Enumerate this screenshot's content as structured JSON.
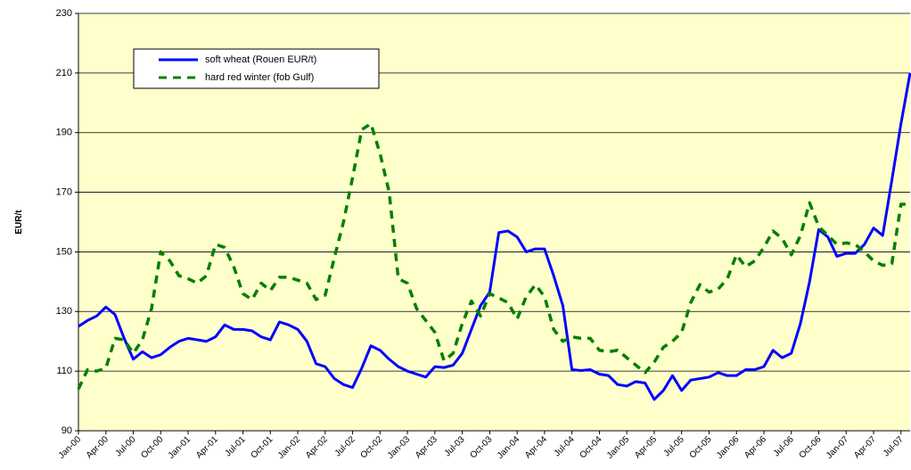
{
  "chart_data": {
    "type": "line",
    "y_label": "EUR/t",
    "categories": [
      "Jan-00",
      null,
      null,
      "Apr-00",
      null,
      null,
      "Jul-00",
      null,
      null,
      "Oct-00",
      null,
      null,
      "Jan-01",
      null,
      null,
      "Apr-01",
      null,
      null,
      "Jul-01",
      null,
      null,
      "Oct-01",
      null,
      null,
      "Jan-02",
      null,
      null,
      "Apr-02",
      null,
      null,
      "Jul-02",
      null,
      null,
      "Oct-02",
      null,
      null,
      "Jan-03",
      null,
      null,
      "Apr-03",
      null,
      null,
      "Jul-03",
      null,
      null,
      "Oct-03",
      null,
      null,
      "Jan-04",
      null,
      null,
      "Apr-04",
      null,
      null,
      "Jul-04",
      null,
      null,
      "Oct-04",
      null,
      null,
      "Jan-05",
      null,
      null,
      "Apr-05",
      null,
      null,
      "Jul-05",
      null,
      null,
      "Oct-05",
      null,
      null,
      "Jan-06",
      null,
      null,
      "Apr-06",
      null,
      null,
      "Jul-06",
      null,
      null,
      "Oct-06",
      null,
      null,
      "Jan-07",
      null,
      null,
      "Apr-07",
      null,
      null,
      "Jul-07",
      null
    ],
    "series": [
      {
        "name": "soft wheat (Rouen EUR/t)",
        "color": "#0000ff",
        "dashed": false,
        "values": [
          125,
          127,
          128.5,
          131.5,
          129,
          121,
          114,
          116.5,
          114.5,
          115.5,
          118,
          120,
          121,
          120.5,
          120,
          121.5,
          125.5,
          124,
          124,
          123.5,
          121.5,
          120.5,
          126.5,
          125.5,
          124,
          120,
          112.5,
          111.5,
          107.5,
          105.5,
          104.5,
          111,
          118.5,
          117,
          114,
          111.5,
          110,
          109,
          108,
          111.5,
          111.2,
          112,
          116,
          124,
          132,
          136.5,
          156.5,
          157,
          155,
          150,
          151,
          151,
          142,
          132,
          110.5,
          110.2,
          110.5,
          109,
          108.5,
          105.5,
          105,
          106.5,
          106,
          100.5,
          103.5,
          108.5,
          103.5,
          107,
          107.5,
          108,
          109.5,
          108.5,
          108.5,
          110.5,
          110.5,
          111.5,
          117,
          114.5,
          116,
          126,
          140,
          157.5,
          155,
          148.5,
          149.5,
          149.5,
          152.5,
          158,
          155.5,
          174,
          193,
          210
        ]
      },
      {
        "name": "hard red winter (fob Gulf)",
        "color": "#008000",
        "dashed": true,
        "values": [
          104,
          110.5,
          110,
          111,
          121,
          120.5,
          116,
          120.5,
          131,
          150,
          147,
          142,
          141,
          139.5,
          142,
          152.5,
          151.5,
          145,
          136,
          134,
          139.5,
          137,
          141.5,
          141.5,
          140.5,
          139.5,
          134,
          135.5,
          148,
          160,
          175,
          191,
          193,
          183,
          170,
          141,
          139.5,
          131,
          127,
          123,
          113.5,
          116,
          126,
          133.5,
          128.5,
          136,
          134.5,
          133,
          127.5,
          135,
          139,
          135,
          124,
          120,
          121.5,
          121,
          121,
          117,
          116.5,
          117,
          114.5,
          112,
          109.5,
          113,
          118,
          120,
          123,
          133,
          139,
          136.5,
          137.5,
          141,
          149,
          145,
          147,
          151.5,
          157,
          154.5,
          149,
          155.5,
          166.5,
          158.5,
          155.5,
          152.5,
          153,
          152.5,
          150,
          147,
          145.5,
          146,
          166,
          166
        ]
      }
    ],
    "ylim": [
      90,
      230
    ],
    "yticks": [
      90,
      110,
      130,
      150,
      170,
      190,
      210,
      230
    ],
    "grid": true,
    "legend": "upper left",
    "background": "#ffffcc"
  }
}
